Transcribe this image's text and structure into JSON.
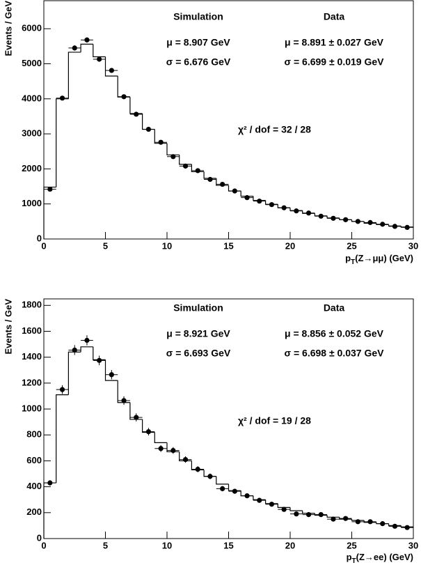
{
  "chart_data": [
    {
      "type": "histogram",
      "ylabel": "Events / GeV",
      "xlabel": {
        "main": "p",
        "sub": "T",
        "rest": "(Z→μμ) (GeV)"
      },
      "bins": [
        0,
        1,
        2,
        3,
        4,
        5,
        6,
        7,
        8,
        9,
        10,
        11,
        12,
        13,
        14,
        15,
        16,
        17,
        18,
        19,
        20,
        21,
        22,
        23,
        24,
        25,
        26,
        27,
        28,
        29,
        30
      ],
      "xlim": [
        0,
        30
      ],
      "xticks": [
        0,
        5,
        10,
        15,
        20,
        25,
        30
      ],
      "ylim": [
        0,
        6800
      ],
      "yticks": [
        0,
        1000,
        2000,
        3000,
        4000,
        5000,
        6000
      ],
      "series": [
        {
          "name": "Simulation",
          "color": "#000000",
          "values": [
            1480,
            4000,
            5330,
            5560,
            5200,
            4650,
            4050,
            3580,
            3130,
            2730,
            2400,
            2130,
            1920,
            1730,
            1530,
            1370,
            1220,
            1100,
            990,
            890,
            810,
            730,
            660,
            600,
            550,
            500,
            450,
            410,
            370,
            340
          ],
          "stats": [
            "μ = 8.907 GeV",
            "σ = 6.676 GeV"
          ]
        },
        {
          "name": "Data",
          "color": "#000000",
          "x": [
            0.5,
            1.5,
            2.5,
            3.5,
            4.5,
            5.5,
            6.5,
            7.5,
            8.5,
            9.5,
            10.5,
            11.5,
            12.5,
            13.5,
            14.5,
            15.5,
            16.5,
            17.5,
            18.5,
            19.5,
            20.5,
            21.5,
            22.5,
            23.5,
            24.5,
            25.5,
            26.5,
            27.5,
            28.5,
            29.5
          ],
          "values": [
            1420,
            4020,
            5450,
            5680,
            5130,
            4810,
            4060,
            3560,
            3130,
            2760,
            2350,
            2080,
            1950,
            1700,
            1560,
            1370,
            1180,
            1080,
            980,
            890,
            800,
            740,
            650,
            590,
            550,
            500,
            470,
            420,
            360,
            330
          ],
          "errors": [
            38,
            63,
            74,
            75,
            72,
            69,
            64,
            60,
            56,
            53,
            48,
            46,
            44,
            41,
            39,
            37,
            34,
            33,
            31,
            30,
            28,
            27,
            25,
            24,
            23,
            22,
            22,
            20,
            19,
            18
          ],
          "stats": [
            "μ = 8.891 ± 0.027 GeV",
            "σ = 6.699 ± 0.019 GeV"
          ]
        }
      ],
      "annotation": "χ² / dof = 32 / 28"
    },
    {
      "type": "histogram",
      "ylabel": "Events / GeV",
      "xlabel": {
        "main": "p",
        "sub": "T",
        "rest": "(Z→ee) (GeV)"
      },
      "bins": [
        0,
        1,
        2,
        3,
        4,
        5,
        6,
        7,
        8,
        9,
        10,
        11,
        12,
        13,
        14,
        15,
        16,
        17,
        18,
        19,
        20,
        21,
        22,
        23,
        24,
        25,
        26,
        27,
        28,
        29,
        30
      ],
      "xlim": [
        0,
        30
      ],
      "xticks": [
        0,
        5,
        10,
        15,
        20,
        25,
        30
      ],
      "ylim": [
        0,
        1850
      ],
      "yticks": [
        0,
        200,
        400,
        600,
        800,
        1000,
        1200,
        1400,
        1600,
        1800
      ],
      "series": [
        {
          "name": "Simulation",
          "color": "#000000",
          "values": [
            430,
            1110,
            1440,
            1480,
            1380,
            1220,
            1050,
            920,
            820,
            740,
            670,
            600,
            530,
            480,
            420,
            370,
            330,
            300,
            270,
            240,
            215,
            195,
            180,
            165,
            150,
            140,
            125,
            115,
            100,
            90
          ],
          "stats": [
            "μ = 8.921 GeV",
            "σ = 6.693 GeV"
          ]
        },
        {
          "name": "Data",
          "color": "#000000",
          "x": [
            0.5,
            1.5,
            2.5,
            3.5,
            4.5,
            5.5,
            6.5,
            7.5,
            8.5,
            9.5,
            10.5,
            11.5,
            12.5,
            13.5,
            14.5,
            15.5,
            16.5,
            17.5,
            18.5,
            19.5,
            20.5,
            21.5,
            22.5,
            23.5,
            24.5,
            25.5,
            26.5,
            27.5,
            28.5,
            29.5
          ],
          "values": [
            430,
            1150,
            1455,
            1530,
            1375,
            1265,
            1065,
            935,
            825,
            695,
            680,
            610,
            535,
            480,
            385,
            365,
            330,
            295,
            265,
            225,
            190,
            185,
            185,
            150,
            155,
            130,
            130,
            115,
            95,
            85
          ],
          "errors": [
            21,
            34,
            38,
            39,
            37,
            36,
            33,
            31,
            29,
            26,
            26,
            25,
            23,
            22,
            20,
            19,
            18,
            17,
            16,
            15,
            14,
            14,
            14,
            12,
            12,
            11,
            11,
            11,
            10,
            9
          ],
          "stats": [
            "μ = 8.856 ± 0.052 GeV",
            "σ = 6.698 ± 0.037 GeV"
          ]
        }
      ],
      "annotation": "χ² / dof = 19 / 28"
    }
  ]
}
